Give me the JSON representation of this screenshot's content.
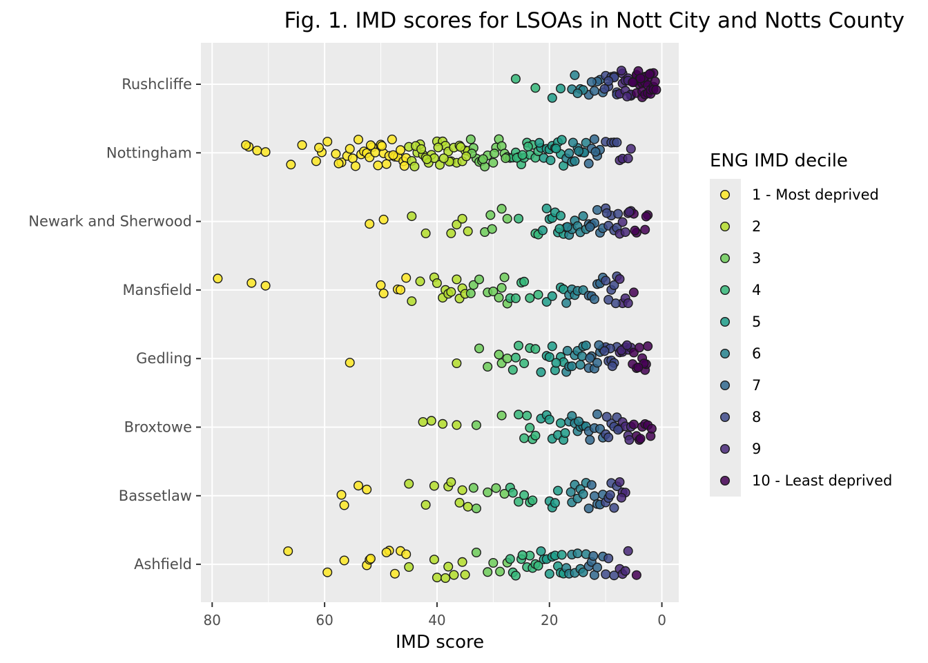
{
  "chart_data": {
    "type": "scatter",
    "title": "Fig. 1. IMD scores for LSOAs in Nott City and Notts County",
    "xlabel": "IMD score",
    "ylabel": "",
    "x_reversed": true,
    "xlim": [
      82,
      -3
    ],
    "x_ticks": [
      "80",
      "60",
      "40",
      "20",
      "0"
    ],
    "x_tick_values": [
      80,
      60,
      40,
      20,
      0
    ],
    "categories": [
      "Rushcliffe",
      "Nottingham",
      "Newark and Sherwood",
      "Mansfield",
      "Gedling",
      "Broxtowe",
      "Bassetlaw",
      "Ashfield"
    ],
    "grid": true,
    "legend": {
      "title": "ENG IMD decile",
      "placement": "right",
      "entries": [
        "1 - Most deprived",
        "2",
        "3",
        "4",
        "5",
        "6",
        "7",
        "8",
        "9",
        "10 - Least deprived"
      ],
      "colors": [
        "#FDE725",
        "#B4DE2C",
        "#6DCD59",
        "#35B779",
        "#1F9E89",
        "#26828E",
        "#31688E",
        "#3E4A89",
        "#482878",
        "#440154"
      ]
    },
    "decile_breaks": [
      45.4,
      34.2,
      27.5,
      21.9,
      17.2,
      13.5,
      10.4,
      7.6,
      5.3
    ],
    "point_style": {
      "stroke": "#1a1a1a",
      "opacity": 0.85
    },
    "series": [
      {
        "category": "Rushcliffe",
        "x": [
          18.0,
          26.0,
          22.5,
          19.5,
          16.0,
          14.5,
          15.5,
          13.0,
          14.0,
          15.0,
          12.0,
          11.0,
          10.5,
          10.0,
          9.5,
          9.0,
          8.5,
          8.0,
          8.0,
          7.5,
          7.0,
          7.0,
          6.5,
          6.5,
          6.0,
          6.0,
          5.5,
          5.5,
          5.0,
          5.0,
          4.5,
          4.5,
          4.5,
          4.0,
          4.0,
          4.0,
          3.5,
          3.5,
          3.5,
          3.0,
          3.0,
          3.0,
          2.5,
          2.5,
          2.5,
          2.0,
          2.0,
          2.0,
          1.5,
          1.5,
          1.5,
          1.2,
          1.0,
          8.5,
          9.5,
          11.5,
          12.5,
          6.2,
          5.2,
          4.2,
          3.2,
          2.2,
          10.2,
          7.2,
          3.8
        ]
      },
      {
        "category": "Nottingham",
        "x": [
          73.5,
          72.0,
          64.0,
          61.5,
          60.5,
          58.0,
          57.0,
          56.0,
          55.0,
          54.0,
          53.5,
          53.0,
          52.5,
          52.0,
          51.5,
          51.0,
          50.5,
          50.0,
          49.5,
          49.0,
          48.5,
          48.0,
          47.5,
          47.0,
          46.5,
          46.0,
          45.5,
          45.0,
          44.5,
          44.0,
          43.5,
          43.0,
          42.5,
          42.0,
          41.5,
          41.0,
          40.5,
          40.0,
          39.5,
          39.0,
          38.5,
          38.0,
          37.5,
          37.0,
          36.5,
          36.0,
          35.5,
          35.0,
          34.5,
          34.0,
          33.5,
          33.0,
          32.5,
          32.0,
          31.5,
          31.0,
          30.0,
          29.5,
          29.0,
          28.5,
          28.0,
          27.5,
          27.0,
          26.5,
          26.0,
          25.5,
          25.0,
          24.5,
          24.0,
          23.5,
          23.0,
          22.5,
          22.0,
          21.5,
          21.0,
          20.5,
          20.0,
          19.5,
          19.0,
          18.5,
          18.0,
          17.5,
          17.0,
          16.5,
          16.0,
          15.5,
          15.0,
          14.5,
          14.0,
          13.5,
          13.0,
          12.5,
          12.0,
          11.5,
          11.0,
          10.0,
          9.0,
          8.5,
          8.0,
          7.5,
          7.0,
          6.0,
          5.5,
          74.0,
          70.5,
          66.0,
          61.0,
          59.5,
          57.5,
          55.5,
          54.5,
          51.8,
          49.8,
          47.8,
          45.8,
          43.8,
          41.8,
          39.8,
          37.8,
          35.8,
          33.8,
          31.8,
          29.8,
          27.8,
          25.8,
          23.8,
          21.8,
          19.8,
          17.8,
          15.8,
          13.8,
          11.8,
          42.8,
          38.8,
          34.8,
          24.8,
          18.8,
          14.8
        ]
      },
      {
        "category": "Newark and Sherwood",
        "x": [
          49.5,
          52.0,
          44.5,
          42.0,
          37.5,
          36.5,
          35.5,
          31.5,
          30.5,
          28.5,
          27.5,
          25.5,
          22.5,
          22.0,
          20.5,
          20.0,
          19.5,
          19.0,
          18.5,
          18.0,
          17.5,
          17.0,
          16.5,
          16.0,
          15.5,
          15.0,
          14.5,
          14.0,
          13.5,
          13.0,
          12.5,
          12.0,
          11.5,
          11.0,
          10.5,
          10.0,
          9.5,
          9.0,
          8.5,
          8.0,
          7.5,
          7.0,
          6.5,
          6.0,
          5.5,
          5.0,
          4.5,
          3.0,
          2.5,
          2.8,
          34.5,
          30.2,
          16.8,
          12.8,
          9.8,
          4.8,
          21.2,
          18.2,
          7.8,
          5.8
        ]
      },
      {
        "category": "Mansfield",
        "x": [
          79.0,
          73.0,
          70.5,
          47.0,
          46.5,
          45.5,
          50.0,
          49.5,
          44.5,
          43.0,
          40.5,
          40.0,
          39.0,
          38.5,
          38.0,
          37.5,
          36.5,
          36.0,
          35.5,
          35.0,
          34.0,
          33.5,
          32.5,
          31.0,
          30.0,
          29.0,
          28.5,
          28.0,
          27.5,
          27.0,
          26.0,
          25.0,
          24.5,
          22.0,
          20.5,
          18.0,
          17.5,
          17.0,
          16.5,
          16.0,
          15.5,
          15.0,
          14.0,
          13.0,
          12.5,
          11.5,
          11.0,
          10.5,
          10.0,
          9.5,
          9.0,
          8.5,
          8.0,
          7.5,
          7.0,
          6.5,
          5.0,
          6.0,
          23.5,
          19.5,
          12.0,
          8.2
        ]
      },
      {
        "category": "Gedling",
        "x": [
          55.5,
          36.5,
          32.5,
          31.0,
          29.0,
          28.5,
          27.5,
          26.5,
          26.0,
          25.5,
          24.5,
          23.5,
          22.5,
          21.5,
          20.5,
          20.0,
          19.5,
          19.0,
          18.0,
          17.5,
          17.0,
          16.5,
          16.0,
          15.5,
          15.0,
          14.5,
          14.0,
          13.5,
          13.0,
          12.5,
          12.0,
          11.5,
          11.0,
          10.5,
          10.0,
          9.5,
          9.0,
          8.5,
          8.0,
          7.5,
          7.0,
          6.5,
          6.0,
          5.5,
          5.0,
          4.5,
          4.0,
          3.5,
          3.0,
          2.5,
          2.8,
          3.2,
          14.2,
          11.2,
          9.2,
          7.2,
          5.2,
          4.2,
          18.8,
          16.8,
          12.8,
          10.2,
          8.8,
          6.2
        ]
      },
      {
        "category": "Broxtowe",
        "x": [
          41.0,
          42.5,
          39.0,
          36.5,
          33.0,
          28.5,
          25.5,
          24.5,
          24.0,
          23.5,
          23.0,
          22.5,
          21.5,
          20.5,
          20.0,
          19.5,
          18.5,
          18.0,
          17.5,
          16.5,
          16.0,
          15.5,
          15.0,
          14.5,
          14.0,
          13.5,
          13.0,
          12.0,
          11.5,
          11.0,
          10.5,
          10.0,
          9.5,
          9.0,
          8.5,
          8.0,
          7.5,
          7.0,
          6.5,
          6.0,
          5.5,
          5.0,
          4.5,
          4.0,
          3.5,
          3.0,
          2.5,
          2.0,
          1.8,
          3.8,
          5.8,
          12.8,
          9.8,
          7.8,
          17.2,
          14.8
        ]
      },
      {
        "category": "Bassetlaw",
        "x": [
          57.0,
          54.0,
          56.5,
          52.5,
          45.0,
          40.5,
          42.0,
          38.0,
          37.5,
          36.0,
          35.5,
          34.5,
          33.5,
          33.0,
          31.0,
          29.5,
          28.0,
          27.0,
          26.5,
          25.5,
          24.5,
          23.5,
          23.0,
          20.0,
          19.5,
          19.0,
          18.5,
          16.0,
          15.5,
          15.0,
          14.5,
          14.0,
          13.5,
          13.0,
          12.0,
          11.5,
          11.0,
          10.5,
          10.0,
          9.5,
          9.0,
          8.5,
          8.0,
          7.5,
          7.0,
          6.5,
          12.5,
          16.2,
          9.2,
          7.2
        ]
      },
      {
        "category": "Ashfield",
        "x": [
          59.5,
          52.5,
          48.5,
          47.5,
          46.5,
          45.0,
          66.5,
          56.5,
          52.0,
          49.0,
          45.5,
          40.5,
          40.0,
          38.0,
          37.0,
          35.5,
          35.0,
          33.0,
          31.0,
          30.0,
          27.5,
          27.0,
          26.5,
          26.0,
          25.0,
          24.0,
          23.5,
          23.0,
          22.5,
          22.0,
          21.5,
          21.0,
          20.5,
          20.0,
          19.5,
          19.0,
          18.5,
          18.0,
          17.5,
          17.0,
          16.5,
          16.0,
          15.5,
          15.0,
          14.5,
          14.0,
          13.5,
          13.0,
          12.5,
          12.0,
          11.5,
          10.5,
          10.0,
          9.5,
          8.5,
          7.5,
          7.0,
          6.5,
          6.0,
          4.5,
          38.5,
          28.8,
          51.8,
          24.8,
          17.8,
          12.2
        ]
      }
    ]
  }
}
